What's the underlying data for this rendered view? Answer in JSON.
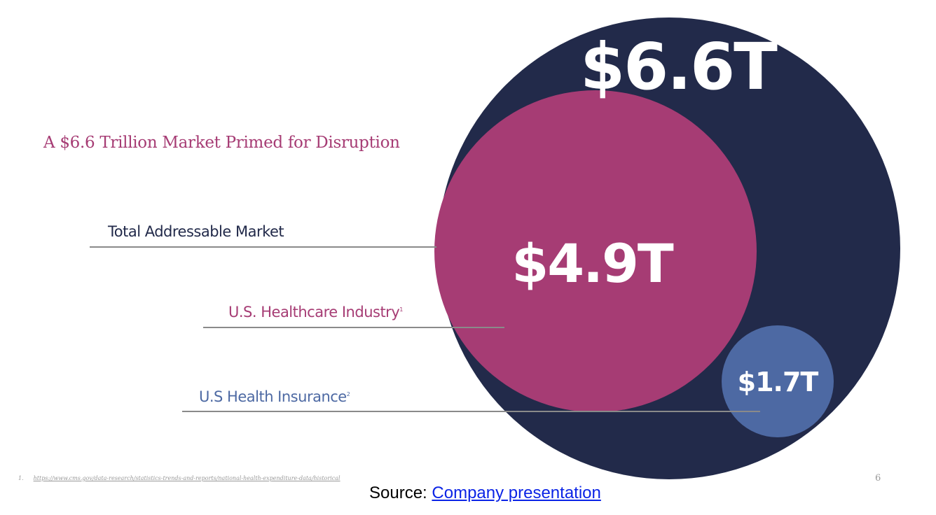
{
  "slide": {
    "title": "A $6.6 Trillion Market Primed for Disruption",
    "labels": [
      {
        "text": "Total Addressable Market",
        "sup": ""
      },
      {
        "text": "U.S. Healthcare Industry",
        "sup": "1"
      },
      {
        "text": "U.S Health Insurance",
        "sup": "2"
      }
    ],
    "values": {
      "total": "$6.6T",
      "healthcare": "$4.9T",
      "insurance": "$1.7T"
    },
    "footnote": {
      "number": "1.",
      "url": "https://www.cms.gov/data-research/statistics-trends-and-reports/national-health-expenditure-data/historical"
    },
    "page_number": "6"
  },
  "source": {
    "prefix": "Source: ",
    "link_text": "Company presentation"
  },
  "colors": {
    "navy": "#222a4a",
    "magenta": "#a63c74",
    "blue": "#4d69a3",
    "link": "#0b24e6"
  }
}
